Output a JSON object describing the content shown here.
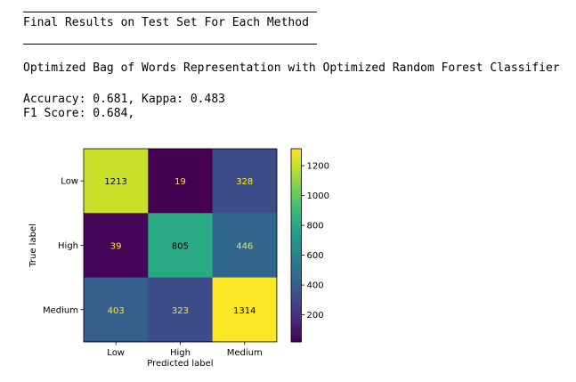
{
  "output": {
    "heading": "Final Results on Test Set For Each Method",
    "method": "Optimized Bag of Words Representation with Optimized Random Forest Classifier",
    "metrics_line1": "Accuracy: 0.681, Kappa: 0.483",
    "metrics_line2": "F1 Score: 0.684,"
  },
  "chart_data": {
    "type": "heatmap",
    "title": "",
    "xlabel": "Predicted label",
    "ylabel": "True label",
    "x_categories": [
      "Low",
      "High",
      "Medium"
    ],
    "y_categories": [
      "Low",
      "High",
      "Medium"
    ],
    "values": [
      [
        1213,
        19,
        328
      ],
      [
        39,
        805,
        446
      ],
      [
        403,
        323,
        1314
      ]
    ],
    "colormap": "viridis",
    "vmin": 19,
    "vmax": 1314,
    "colorbar_ticks": [
      200,
      400,
      600,
      800,
      1000,
      1200
    ],
    "text_color_light": "#fde725",
    "text_color_dark": "#000000"
  }
}
